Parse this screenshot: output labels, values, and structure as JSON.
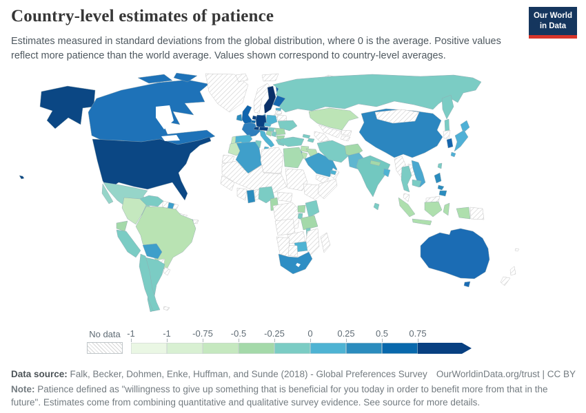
{
  "header": {
    "title": "Country-level estimates of patience",
    "subtitle": "Estimates measured in standard deviations from the global distribution, where 0 is the average. Positive values reflect more patience than the world average. Values shown correspond to country-level averages.",
    "logo": {
      "line1": "Our World",
      "line2": "in Data",
      "bg": "#15365e",
      "accent": "#d8352a"
    }
  },
  "legend": {
    "no_data_label": "No data",
    "tick_labels": [
      "-1",
      "-1",
      "-0.75",
      "-0.5",
      "-0.25",
      "0",
      "0.25",
      "0.5",
      "0.75"
    ],
    "colors": [
      "#eaf7e4",
      "#d8f0d2",
      "#c5e8bf",
      "#a4d9a9",
      "#7bccc4",
      "#4eb3d3",
      "#2b8cbe",
      "#0868ac",
      "#084081"
    ]
  },
  "map": {
    "colors": {
      "usa": "#0b4784",
      "canada": "#1e72b8",
      "mexico": "#96d5c9",
      "guatemala": "#7bccc4",
      "honduras_x": "",
      "nicaragua": "#7bccc4",
      "costarica": "#d8f0d2",
      "panama": "#7bccc4",
      "haiti": "#7bccc4",
      "venezuela": "#7bccc4",
      "suriname": "#3e9fcc",
      "colombia": "#c5e8bf",
      "ecuador": "#a4d9a9",
      "peru": "#7bccc4",
      "brazil": "#b9e3b3",
      "bolivia": "#3f9fca",
      "chile": "#7bccc4",
      "argentina": "#7bccc4",
      "sweden": "#0a3069",
      "finland": "#1668b0",
      "denmark": "#0868ac",
      "estonia": "#4eb3d3",
      "uk": "#0f65ae",
      "ireland": "#2b8cbe",
      "netherlands": "#084081",
      "belgium": "#0868ac",
      "germany": "#084081",
      "france": "#2e7ebc",
      "spain": "#4eb3d3",
      "portugal": "#c5e8bf",
      "italy": "#4eb3d3",
      "switzerland": "#084081",
      "austria": "#084081",
      "czech": "#4eb3d3",
      "poland": "#4eb3d3",
      "ukraine": "#7bccc4",
      "hungary": "#7bccc4",
      "romania": "#a4d9a9",
      "serbia": "#7bccc4",
      "croatia_bosnia": "#a4d9a9",
      "bulgaria": "#a4d9a9",
      "greece": "#7bccc4",
      "russia": "#7bccc4",
      "kazakhstan": "#bce4b6",
      "georgia": "#7bccc4",
      "azerbaijan": "#7bccc4",
      "turkey": "#7bccc4",
      "syria": "#b9e3b3",
      "iraq": "#b5e0b0",
      "israel": "#3f9fca",
      "jordan": "#b9e3b3",
      "saudi": "#3f9fca",
      "uae": "#4eb3d3",
      "iran": "#7bccc4",
      "afghanistan": "#a4d9a9",
      "pakistan": "#5fb6d0",
      "india": "#72c8c0",
      "nepal": "#a4d9a9",
      "bangladesh": "#4eb3d3",
      "srilanka": "#7bccc4",
      "china": "#2b86c0",
      "taiwan": "#7bccc4",
      "south_korea": "#1565ad",
      "japan": "#4fb0d6",
      "thailand": "#7bccc4",
      "vietnam": "#4aa8cf",
      "cambodia": "#7bccc4",
      "indonesia": "#aedfad",
      "philippines": "#2b8cbe",
      "morocco": "#c5e8bf",
      "algeria": "#3f9fca",
      "tunisia": "#7bccc4",
      "egypt": "#a8dcb0",
      "ghana": "#2b8cbe",
      "nigeria": "#7bccc4",
      "cameroon": "#a4d9a9",
      "uganda": "#a4d9a9",
      "kenya": "#7bccc4",
      "rwanda_burundi": "#7bccc4",
      "tanzania": "#a4d9a9",
      "malawi": "#7bccc4",
      "zimbabwe": "#4eb3d3",
      "south_africa": "#2e8ec4",
      "australia": "#1b6cb4"
    }
  },
  "footer": {
    "source_label": "Data source:",
    "source_text": " Falk, Becker, Dohmen, Enke, Huffman, and Sunde (2018) - Global Preferences Survey",
    "link_text": "OurWorldinData.org/trust | CC BY",
    "note_label": "Note:",
    "note_text": " Patience defined as \"willingness to give up something that is beneficial for you today in order to benefit more from that in the future\". Estimates come from combining quantitative and qualitative survey evidence. See source for more details."
  },
  "chart_data": {
    "type": "choropleth",
    "title": "Country-level estimates of patience",
    "value_unit": "standard deviations from the global average (0 = world average)",
    "legend_bin_edges": [
      "-1",
      "-1",
      "-0.75",
      "-0.5",
      "-0.25",
      "0",
      "0.25",
      "0.5",
      "0.75"
    ],
    "legend_colors": [
      "#eaf7e4",
      "#d8f0d2",
      "#c5e8bf",
      "#a4d9a9",
      "#7bccc4",
      "#4eb3d3",
      "#2b8cbe",
      "#0868ac",
      "#084081"
    ],
    "countries_by_shade": {
      "darkest_navy_above_0.75": [
        "United States",
        "Sweden",
        "Germany",
        "Netherlands",
        "Switzerland",
        "Austria"
      ],
      "dark_blue_0.5_0.75": [
        "Canada",
        "Australia",
        "United Kingdom",
        "Finland",
        "South Korea",
        "Denmark",
        "Belgium"
      ],
      "medium_blue_0.25_0.5": [
        "China",
        "France",
        "Ireland",
        "Ghana",
        "South Africa",
        "Philippines",
        "Suriname"
      ],
      "light_blue_0_0.25": [
        "Algeria",
        "Saudi Arabia",
        "Bolivia",
        "Vietnam",
        "Japan",
        "Spain",
        "Poland",
        "Czechia",
        "Italy",
        "Bangladesh",
        "Zimbabwe",
        "Israel",
        "Estonia",
        "Pakistan",
        "United Arab Emirates"
      ],
      "teal_-0.25_0": [
        "Russia",
        "India",
        "Iran",
        "Turkey",
        "Nigeria",
        "Thailand",
        "Cambodia",
        "Kenya",
        "Venezuela",
        "Peru",
        "Chile",
        "Argentina",
        "Mexico",
        "Greece",
        "Ukraine",
        "Hungary",
        "Sri Lanka",
        "Haiti",
        "Guatemala",
        "Nicaragua",
        "Panama",
        "Malawi",
        "Rwanda",
        "Tunisia",
        "Serbia",
        "Georgia",
        "Azerbaijan",
        "Taiwan"
      ],
      "green_-0.5_-0.25": [
        "Egypt",
        "Afghanistan",
        "Cameroon",
        "Tanzania",
        "Uganda",
        "Romania",
        "Bulgaria",
        "Bosnia and Herzegovina",
        "Syria",
        "Iraq",
        "Jordan",
        "Nepal",
        "Ecuador"
      ],
      "light_green_below_-0.5": [
        "Brazil",
        "Colombia",
        "Kazakhstan",
        "Morocco",
        "Portugal",
        "Indonesia",
        "Costa Rica"
      ],
      "no_data": [
        "Greenland",
        "Iceland",
        "Norway",
        "Mongolia",
        "Myanmar",
        "Laos",
        "North Korea",
        "Papua New Guinea",
        "New Zealand",
        "Cuba",
        "Dominican Republic",
        "Jamaica",
        "Honduras",
        "Paraguay",
        "Uruguay",
        "Guyana",
        "French Guiana",
        "Libya",
        "Sudan",
        "Ethiopia",
        "Somalia",
        "DR Congo",
        "Angola",
        "Zambia",
        "Mozambique",
        "Botswana",
        "Namibia",
        "Madagascar",
        "Mali",
        "Niger",
        "Chad",
        "Mauritania",
        "Belarus",
        "Latvia",
        "Lithuania",
        "Uzbekistan",
        "Turkmenistan",
        "Kyrgyzstan",
        "Tajikistan",
        "Yemen",
        "Oman",
        "Malaysia",
        "Western Sahara"
      ]
    }
  }
}
